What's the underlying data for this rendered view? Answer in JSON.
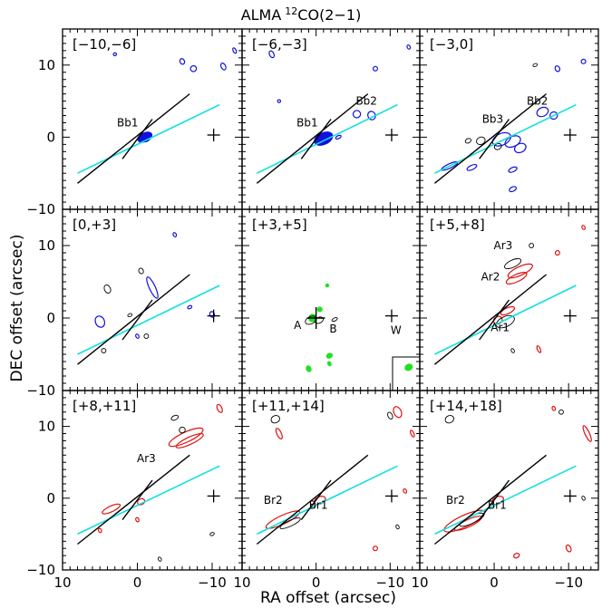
{
  "figure": {
    "title_main": "ALMA",
    "title_sup": "12",
    "title_rest": "CO(2−1)"
  },
  "chart_data": {
    "type": "contour-map-grid",
    "xlabel": "RA offset (arcsec)",
    "ylabel": "DEC offset (arcsec)",
    "xlim": [
      10,
      -14
    ],
    "ylim": [
      -10,
      15
    ],
    "x_ticks": [
      10,
      0,
      -10
    ],
    "y_ticks": [
      10,
      0,
      -10
    ],
    "colors": {
      "blue": "#1010e0",
      "red": "#e01010",
      "green": "#20e020",
      "black": "#000000",
      "cyan": "#10e0e0"
    },
    "axes_lines": {
      "black_line": [
        [
          8,
          -6.4
        ],
        [
          -7,
          6
        ]
      ],
      "cross_line": [
        [
          2,
          -3
        ],
        [
          -2,
          2.5
        ]
      ],
      "cyan_line": [
        [
          8,
          -5
        ],
        [
          -11,
          4.5
        ]
      ]
    },
    "star_W": [
      -10.2,
      0.3
    ],
    "panels": [
      {
        "label": "[−10,−6]",
        "color": "blue",
        "blobs": [
          [
            -1,
            0,
            1.0,
            0.6,
            true
          ],
          [
            -1.2,
            -0.3,
            0.5,
            0.3,
            true
          ],
          [
            -7.5,
            9.5,
            0.4,
            0.4,
            false
          ],
          [
            -6,
            10.5,
            0.3,
            0.4,
            false
          ],
          [
            -11.5,
            9.8,
            0.3,
            0.5,
            false
          ],
          [
            -13,
            12,
            0.2,
            0.4,
            false
          ],
          [
            3,
            11.5,
            0.2,
            0.2,
            false
          ]
        ],
        "texts": [
          {
            "t": "Bb1",
            "x": 1.3,
            "y": 1.5
          }
        ]
      },
      {
        "label": "[−6,−3]",
        "color": "blue",
        "blobs": [
          [
            -1,
            -0.2,
            1.3,
            0.8,
            true
          ],
          [
            -3,
            0,
            0.4,
            0.2,
            false
          ],
          [
            -5.5,
            3.2,
            0.5,
            0.5,
            false
          ],
          [
            -7.5,
            3,
            0.5,
            0.6,
            false
          ],
          [
            -8,
            9.5,
            0.3,
            0.3,
            false
          ],
          [
            -12.5,
            12.5,
            0.2,
            0.3,
            false
          ],
          [
            6,
            11.5,
            0.3,
            0.5,
            false
          ],
          [
            5,
            5,
            0.2,
            0.2,
            false
          ]
        ],
        "texts": [
          {
            "t": "Bb1",
            "x": 1.2,
            "y": 1.5
          },
          {
            "t": "Bb2",
            "x": -6.8,
            "y": 4.5
          }
        ]
      },
      {
        "label": "[−3,0]",
        "color": "blue",
        "blobs": [
          [
            -1,
            -0.3,
            1.3,
            0.8,
            false
          ],
          [
            -2.5,
            -0.6,
            1.1,
            0.7,
            false
          ],
          [
            -3.5,
            -1.5,
            0.8,
            0.6,
            false
          ],
          [
            -6.5,
            3.5,
            0.8,
            0.6,
            false
          ],
          [
            -8,
            3,
            0.5,
            0.5,
            false
          ],
          [
            -2.5,
            -4.5,
            0.6,
            0.3,
            false
          ],
          [
            6,
            -4,
            1.2,
            0.3,
            false
          ],
          [
            3,
            -4.2,
            0.7,
            0.3,
            false
          ],
          [
            -2.5,
            -7.2,
            0.5,
            0.3,
            false
          ],
          [
            -8.5,
            9.5,
            0.3,
            0.4,
            false
          ],
          [
            -12,
            10.5,
            0.3,
            0.3,
            false
          ]
        ],
        "black_blobs": [
          [
            1.8,
            -0.5,
            0.6,
            0.5
          ],
          [
            -0.5,
            -1.3,
            0.5,
            0.4
          ],
          [
            3.5,
            -0.5,
            0.4,
            0.3
          ],
          [
            -5.5,
            10,
            0.3,
            0.2
          ]
        ],
        "texts": [
          {
            "t": "Bb3",
            "x": 0.2,
            "y": 2.0
          },
          {
            "t": "Bb2",
            "x": -5.8,
            "y": 4.5
          }
        ]
      },
      {
        "label": "[0,+3]",
        "color": "blue",
        "blobs": [
          [
            -2,
            4.2,
            0.4,
            1.6,
            false
          ],
          [
            5,
            -0.5,
            0.6,
            0.8,
            false
          ],
          [
            -10,
            0.5,
            0.3,
            0.4,
            false
          ],
          [
            -7,
            1.5,
            0.3,
            0.2,
            false
          ],
          [
            -5,
            11.5,
            0.2,
            0.3,
            false
          ],
          [
            0,
            -2.5,
            0.2,
            0.3,
            false
          ]
        ],
        "black_blobs": [
          [
            4,
            4,
            0.4,
            0.6
          ],
          [
            -0.5,
            6.5,
            0.3,
            0.4
          ],
          [
            1,
            0.4,
            0.3,
            0.2
          ],
          [
            4.5,
            -4.5,
            0.3,
            0.3
          ],
          [
            -1.2,
            -2.5,
            0.3,
            0.3
          ]
        ],
        "texts": []
      },
      {
        "label": "[+3,+5]",
        "color": "green",
        "blobs": [
          [
            -1.5,
            4.5,
            0.2,
            0.2,
            true
          ],
          [
            0.5,
            0,
            0.5,
            0.5,
            true
          ],
          [
            -0.5,
            1.2,
            0.3,
            0.3,
            true
          ],
          [
            -1.8,
            -5.2,
            0.4,
            0.3,
            true
          ],
          [
            1,
            -7,
            0.3,
            0.4,
            true
          ],
          [
            -1.8,
            -6.3,
            0.2,
            0.3,
            true
          ],
          [
            -12.5,
            -6.8,
            0.5,
            0.4,
            true
          ]
        ],
        "black_blobs": [
          [
            0.7,
            -0.3,
            0.8,
            0.5
          ],
          [
            -0.4,
            -0.3,
            0.6,
            0.4
          ],
          [
            -2.5,
            -0.2,
            0.4,
            0.2
          ]
        ],
        "texts": [
          {
            "t": "A",
            "x": 2.5,
            "y": -1.5
          },
          {
            "t": "B",
            "x": -2.3,
            "y": -2.0
          },
          {
            "t": "W",
            "x": -10.8,
            "y": -2.2
          }
        ],
        "beam_box": true,
        "no_lines": true
      },
      {
        "label": "[+5,+8]",
        "color": "red",
        "blobs": [
          [
            -3.5,
            6.5,
            1.8,
            0.6,
            false
          ],
          [
            -3,
            5.5,
            1.5,
            0.5,
            false
          ],
          [
            -1.8,
            1,
            1.0,
            0.4,
            false
          ],
          [
            -0.5,
            -0.3,
            0.6,
            0.5,
            false
          ],
          [
            -8.5,
            9,
            0.3,
            0.3,
            false
          ],
          [
            -12,
            12.5,
            0.2,
            0.3,
            false
          ],
          [
            -6,
            -4.3,
            0.2,
            0.5,
            false
          ]
        ],
        "black_blobs": [
          [
            -2.5,
            7.5,
            1.2,
            0.5
          ],
          [
            -1.5,
            -0.5,
            1.3,
            0.7
          ],
          [
            -2.5,
            -4.5,
            0.2,
            0.3
          ],
          [
            -5,
            10,
            0.3,
            0.3
          ]
        ],
        "texts": [
          {
            "t": "Ar3",
            "x": -1.2,
            "y": 9.5
          },
          {
            "t": "Ar2",
            "x": 0.5,
            "y": 5.2
          },
          {
            "t": "Ar1",
            "x": -0.8,
            "y": -1.8
          }
        ]
      },
      {
        "label": "[+8,+11]",
        "color": "red",
        "blobs": [
          [
            -6.5,
            8.5,
            2.5,
            0.7,
            false
          ],
          [
            -7,
            8,
            2.0,
            0.5,
            false
          ],
          [
            3.5,
            -1.5,
            1.3,
            0.4,
            false
          ],
          [
            -0.5,
            -0.5,
            0.5,
            0.4,
            false
          ],
          [
            -11,
            12.5,
            0.3,
            0.6,
            false
          ],
          [
            5,
            -4.5,
            0.2,
            0.3,
            false
          ],
          [
            0,
            -3,
            0.2,
            0.3,
            false
          ]
        ],
        "black_blobs": [
          [
            -5,
            11.2,
            0.5,
            0.3
          ],
          [
            -6,
            9.5,
            0.4,
            0.4
          ],
          [
            -10,
            -5,
            0.3,
            0.2
          ],
          [
            -3,
            -8.5,
            0.2,
            0.3
          ]
        ],
        "texts": [
          {
            "t": "Ar3",
            "x": -1.2,
            "y": 5.0
          }
        ]
      },
      {
        "label": "[+11,+14]",
        "color": "red",
        "blobs": [
          [
            4.5,
            -3.0,
            2.5,
            0.6,
            false
          ],
          [
            -0.5,
            -0.3,
            0.8,
            0.5,
            false
          ],
          [
            -11,
            12,
            0.5,
            0.8,
            false
          ],
          [
            -13,
            9,
            0.2,
            0.5,
            false
          ],
          [
            5,
            9,
            0.3,
            0.8,
            false
          ],
          [
            -8,
            -7,
            0.3,
            0.3,
            false
          ],
          [
            -12,
            1,
            0.2,
            0.3,
            false
          ]
        ],
        "black_blobs": [
          [
            5.5,
            11,
            0.6,
            0.5
          ],
          [
            3.5,
            -3.5,
            1.5,
            0.4
          ],
          [
            -10,
            11.5,
            0.3,
            0.5
          ],
          [
            -11,
            -4,
            0.2,
            0.3
          ]
        ],
        "texts": [
          {
            "t": "Br2",
            "x": 5.8,
            "y": -0.8
          },
          {
            "t": "Br1",
            "x": -0.3,
            "y": -1.5
          }
        ]
      },
      {
        "label": "[+14,+18]",
        "color": "red",
        "blobs": [
          [
            4,
            -3.2,
            3.0,
            0.8,
            false
          ],
          [
            3.5,
            -3.5,
            2.0,
            0.5,
            false
          ],
          [
            -0.5,
            -0.3,
            0.8,
            0.5,
            false
          ],
          [
            -12.5,
            9,
            0.3,
            1.2,
            false
          ],
          [
            -8,
            12.5,
            0.2,
            0.3,
            false
          ],
          [
            -10,
            -7,
            0.3,
            0.5,
            false
          ],
          [
            -3,
            -8,
            0.4,
            0.3,
            false
          ]
        ],
        "black_blobs": [
          [
            6,
            11,
            0.6,
            0.5
          ],
          [
            3,
            -3.0,
            1.8,
            0.5
          ],
          [
            -9,
            12,
            0.3,
            0.3
          ],
          [
            -12,
            0,
            0.2,
            0.3
          ]
        ],
        "texts": [
          {
            "t": "Br2",
            "x": 5.2,
            "y": -0.8
          },
          {
            "t": "Br1",
            "x": -0.4,
            "y": -1.5
          }
        ]
      }
    ]
  }
}
